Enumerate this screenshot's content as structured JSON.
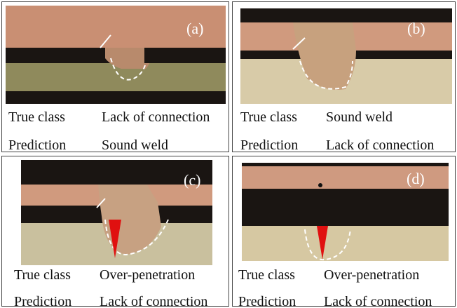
{
  "panels": [
    {
      "label": "(a)",
      "true_class_label": "True class",
      "true_class": "Lack of connection",
      "prediction_label": "Prediction",
      "prediction": "Sound weld"
    },
    {
      "label": "(b)",
      "true_class_label": "True class",
      "true_class": "Sound weld",
      "prediction_label": "Prediction",
      "prediction": "Lack of connection"
    },
    {
      "label": "(c)",
      "true_class_label": "True class",
      "true_class": "Over-penetration",
      "prediction_label": "Prediction",
      "prediction": "Lack of connection"
    },
    {
      "label": "(d)",
      "true_class_label": "True class",
      "true_class": "Over-penetration",
      "prediction_label": "Prediction",
      "prediction": "Lack of connection"
    }
  ]
}
